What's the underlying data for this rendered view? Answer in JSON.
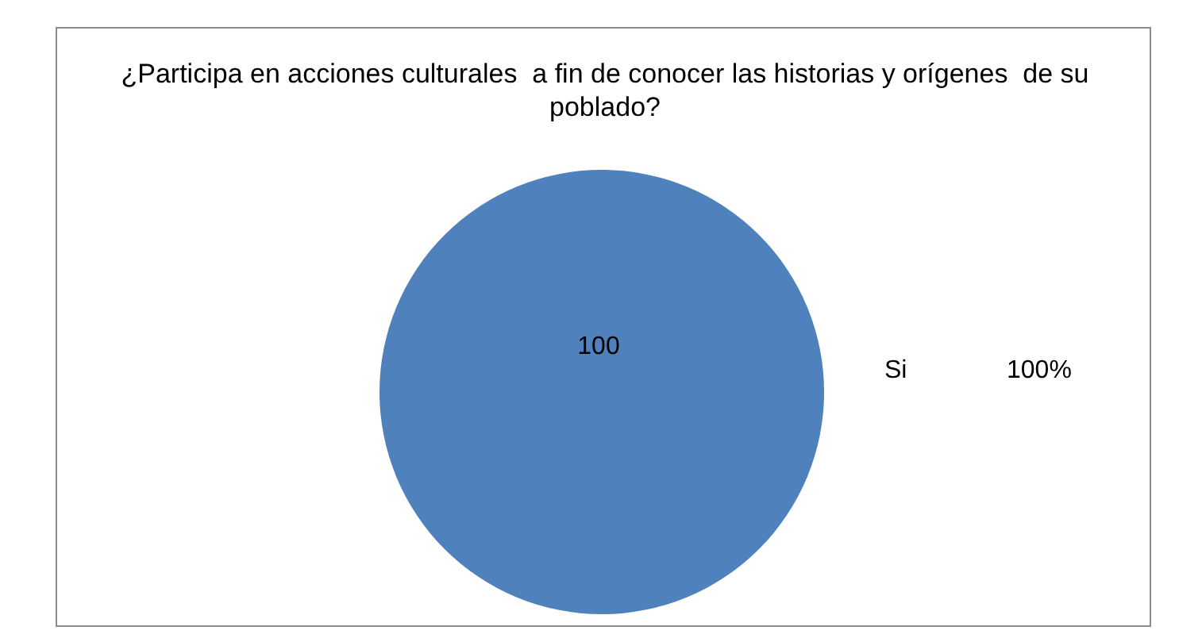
{
  "chart_data": {
    "type": "pie",
    "title": "¿Participa en acciones culturales  a fin de conocer las historias y orígenes  de su poblado?",
    "categories": [
      "Si"
    ],
    "values": [
      100
    ],
    "colors": [
      "#4f81bd"
    ],
    "data_labels": true,
    "annotations": [
      "100%"
    ]
  }
}
